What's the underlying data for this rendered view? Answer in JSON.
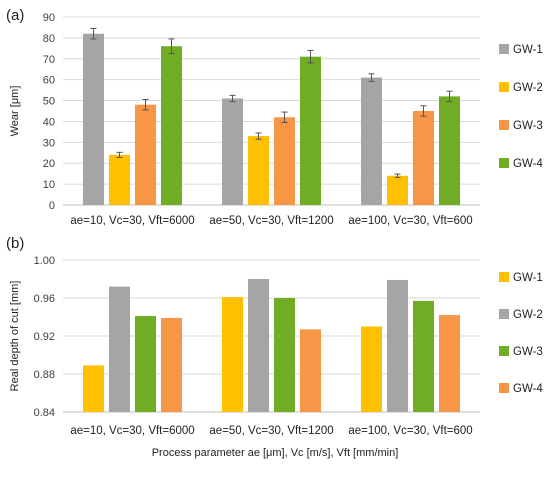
{
  "figure": {
    "xlabel": "Process parameter ae [μm], Vc [m/s], Vft [mm/min]"
  },
  "chart_data": [
    {
      "type": "bar",
      "panel_label": "(a)",
      "categories": [
        "ae=10, Vc=30, Vft=6000",
        "ae=50, Vc=30, Vft=1200",
        "ae=100, Vc=30, Vft=600"
      ],
      "ylabel": "Wear [μm]",
      "xlabel": "",
      "ylim": [
        0,
        90
      ],
      "yticks": [
        "0",
        "10",
        "20",
        "30",
        "40",
        "50",
        "60",
        "70",
        "80",
        "90"
      ],
      "grid": true,
      "legend_position": "right",
      "error_bars": true,
      "series": [
        {
          "name": "GW-1",
          "color": "#a5a5a5",
          "values": [
            82,
            51,
            61
          ],
          "errors": [
            2.5,
            1.5,
            1.8
          ]
        },
        {
          "name": "GW-2",
          "color": "#ffc000",
          "values": [
            24,
            33,
            14
          ],
          "errors": [
            1.2,
            1.5,
            0.8
          ]
        },
        {
          "name": "GW-3",
          "color": "#f79646",
          "values": [
            48,
            42,
            45
          ],
          "errors": [
            2.5,
            2.5,
            2.5
          ]
        },
        {
          "name": "GW-4",
          "color": "#70ad25",
          "values": [
            76,
            71,
            52
          ],
          "errors": [
            3.5,
            3.0,
            2.5
          ]
        }
      ]
    },
    {
      "type": "bar",
      "panel_label": "(b)",
      "categories": [
        "ae=10, Vc=30, Vft=6000",
        "ae=50, Vc=30, Vft=1200",
        "ae=100, Vc=30, Vft=600"
      ],
      "ylabel": "Real depth of cut [mm]",
      "ylim": [
        0.84,
        1.0
      ],
      "yticks": [
        "0.84",
        "0.88",
        "0.92",
        "0.96",
        "1.00"
      ],
      "grid": true,
      "legend_position": "right",
      "error_bars": false,
      "series": [
        {
          "name": "GW-1",
          "color": "#ffc000",
          "values": [
            0.889,
            0.961,
            0.93
          ]
        },
        {
          "name": "GW-2",
          "color": "#a5a5a5",
          "values": [
            0.972,
            0.98,
            0.979
          ]
        },
        {
          "name": "GW-3",
          "color": "#70ad25",
          "values": [
            0.941,
            0.96,
            0.957
          ]
        },
        {
          "name": "GW-4",
          "color": "#f79646",
          "values": [
            0.939,
            0.927,
            0.942
          ]
        }
      ]
    }
  ]
}
